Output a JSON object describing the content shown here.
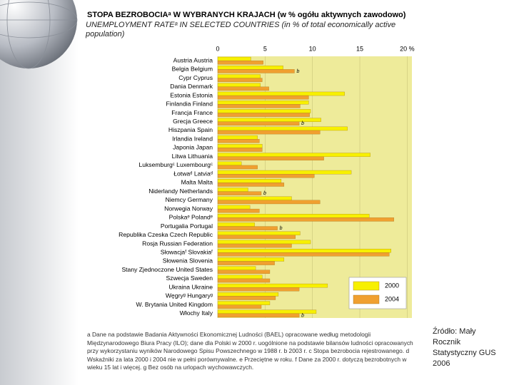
{
  "chart_data": {
    "type": "barh",
    "title": "STOPA BEZROBOCIAᵃ W WYBRANYCH KRAJACH (w % ogółu aktywnych zawodowo)",
    "subtitle": "UNEMPLOYMENT RATEᵃ IN SELECTED COUNTRIES (in % of total economically active population)",
    "categories": [
      "Austria Austria",
      "Belgia Belgium",
      "Cypr Cyprus",
      "Dania Denmark",
      "Estonia Estonia",
      "Finlandia Finland",
      "Francja France",
      "Grecja Greece",
      "Hiszpania Spain",
      "Irlandia Ireland",
      "Japonia Japan",
      "Litwa Lithuania",
      "Luksemburgᶜ Luxembourgᶜ",
      "Łotwaᵈ Latviaᵈ",
      "Malta Malta",
      "Niderlandy Netherlands",
      "Niemcy Germany",
      "Norwegia Norway",
      "Polskaᵉ Polandᵉ",
      "Portugalia Portugal",
      "Republika Czeska Czech Republic",
      "Rosja Russian Federation",
      "Słowacjaᶠ Slovakiaᶠ",
      "Słowenia Slovenia",
      "Stany Zjednoczone United States",
      "Szwecja Sweden",
      "Ukraina Ukraine",
      "Węgryᵍ Hungaryᵍ",
      "W. Brytania United Kingdom",
      "Włochy Italy"
    ],
    "series": [
      {
        "name": "2000",
        "color": "#f7f000",
        "values": [
          3.5,
          6.9,
          4.5,
          4.5,
          13.4,
          9.6,
          9.8,
          10.9,
          13.7,
          4.2,
          4.7,
          16.1,
          2.5,
          14.1,
          6.7,
          3.2,
          7.8,
          3.4,
          16.0,
          3.9,
          8.7,
          9.8,
          18.3,
          7.0,
          4.0,
          4.7,
          11.6,
          6.4,
          5.5,
          10.4
        ]
      },
      {
        "name": "2004",
        "color": "#f0a030",
        "values": [
          4.8,
          8.1,
          4.7,
          5.4,
          9.6,
          8.7,
          9.7,
          8.6,
          10.8,
          4.4,
          4.7,
          11.2,
          4.2,
          10.2,
          7.0,
          4.6,
          10.8,
          4.4,
          18.6,
          6.3,
          8.2,
          7.8,
          18.1,
          6.0,
          5.5,
          5.5,
          8.6,
          6.1,
          4.6,
          8.6
        ],
        "notes": [
          null,
          "b",
          null,
          null,
          null,
          null,
          null,
          "b",
          null,
          null,
          null,
          null,
          null,
          null,
          null,
          "b",
          null,
          null,
          null,
          "b",
          null,
          null,
          null,
          null,
          null,
          null,
          null,
          null,
          null,
          "b"
        ]
      }
    ],
    "xlim": [
      0,
      20.5
    ],
    "xticks": [
      0,
      5,
      10,
      15,
      {
        "value": 20,
        "label": "20 %"
      }
    ],
    "grid": true,
    "plot_background": "#eeeb9a",
    "legend": "lower right",
    "footnote": "a Dane na podstawie Badania Aktywności Ekonomicznej Ludności (BAEL) opracowane według metodologii Międzynarodowego Biura Pracy (ILO); dane dla Polski w 2000 r. uogólnione na podstawie bilansów ludności opracowanych przy wykorzystaniu wyników Narodowego Spisu Powszechnego w 1988 r. b 2003 r. c Stopa bezrobocia rejestrowanego. d Wskaźniki za lata 2000 i 2004 nie w pełni porównywalne. e Przeciętne w roku. f Dane za 2000 r. dotyczą bezrobotnych w wieku 15 lat i więcej. g Bez osób na urlopach wychowawczych.",
    "source": "Źródło: Mały Rocznik Statystyczny GUS 2006"
  }
}
